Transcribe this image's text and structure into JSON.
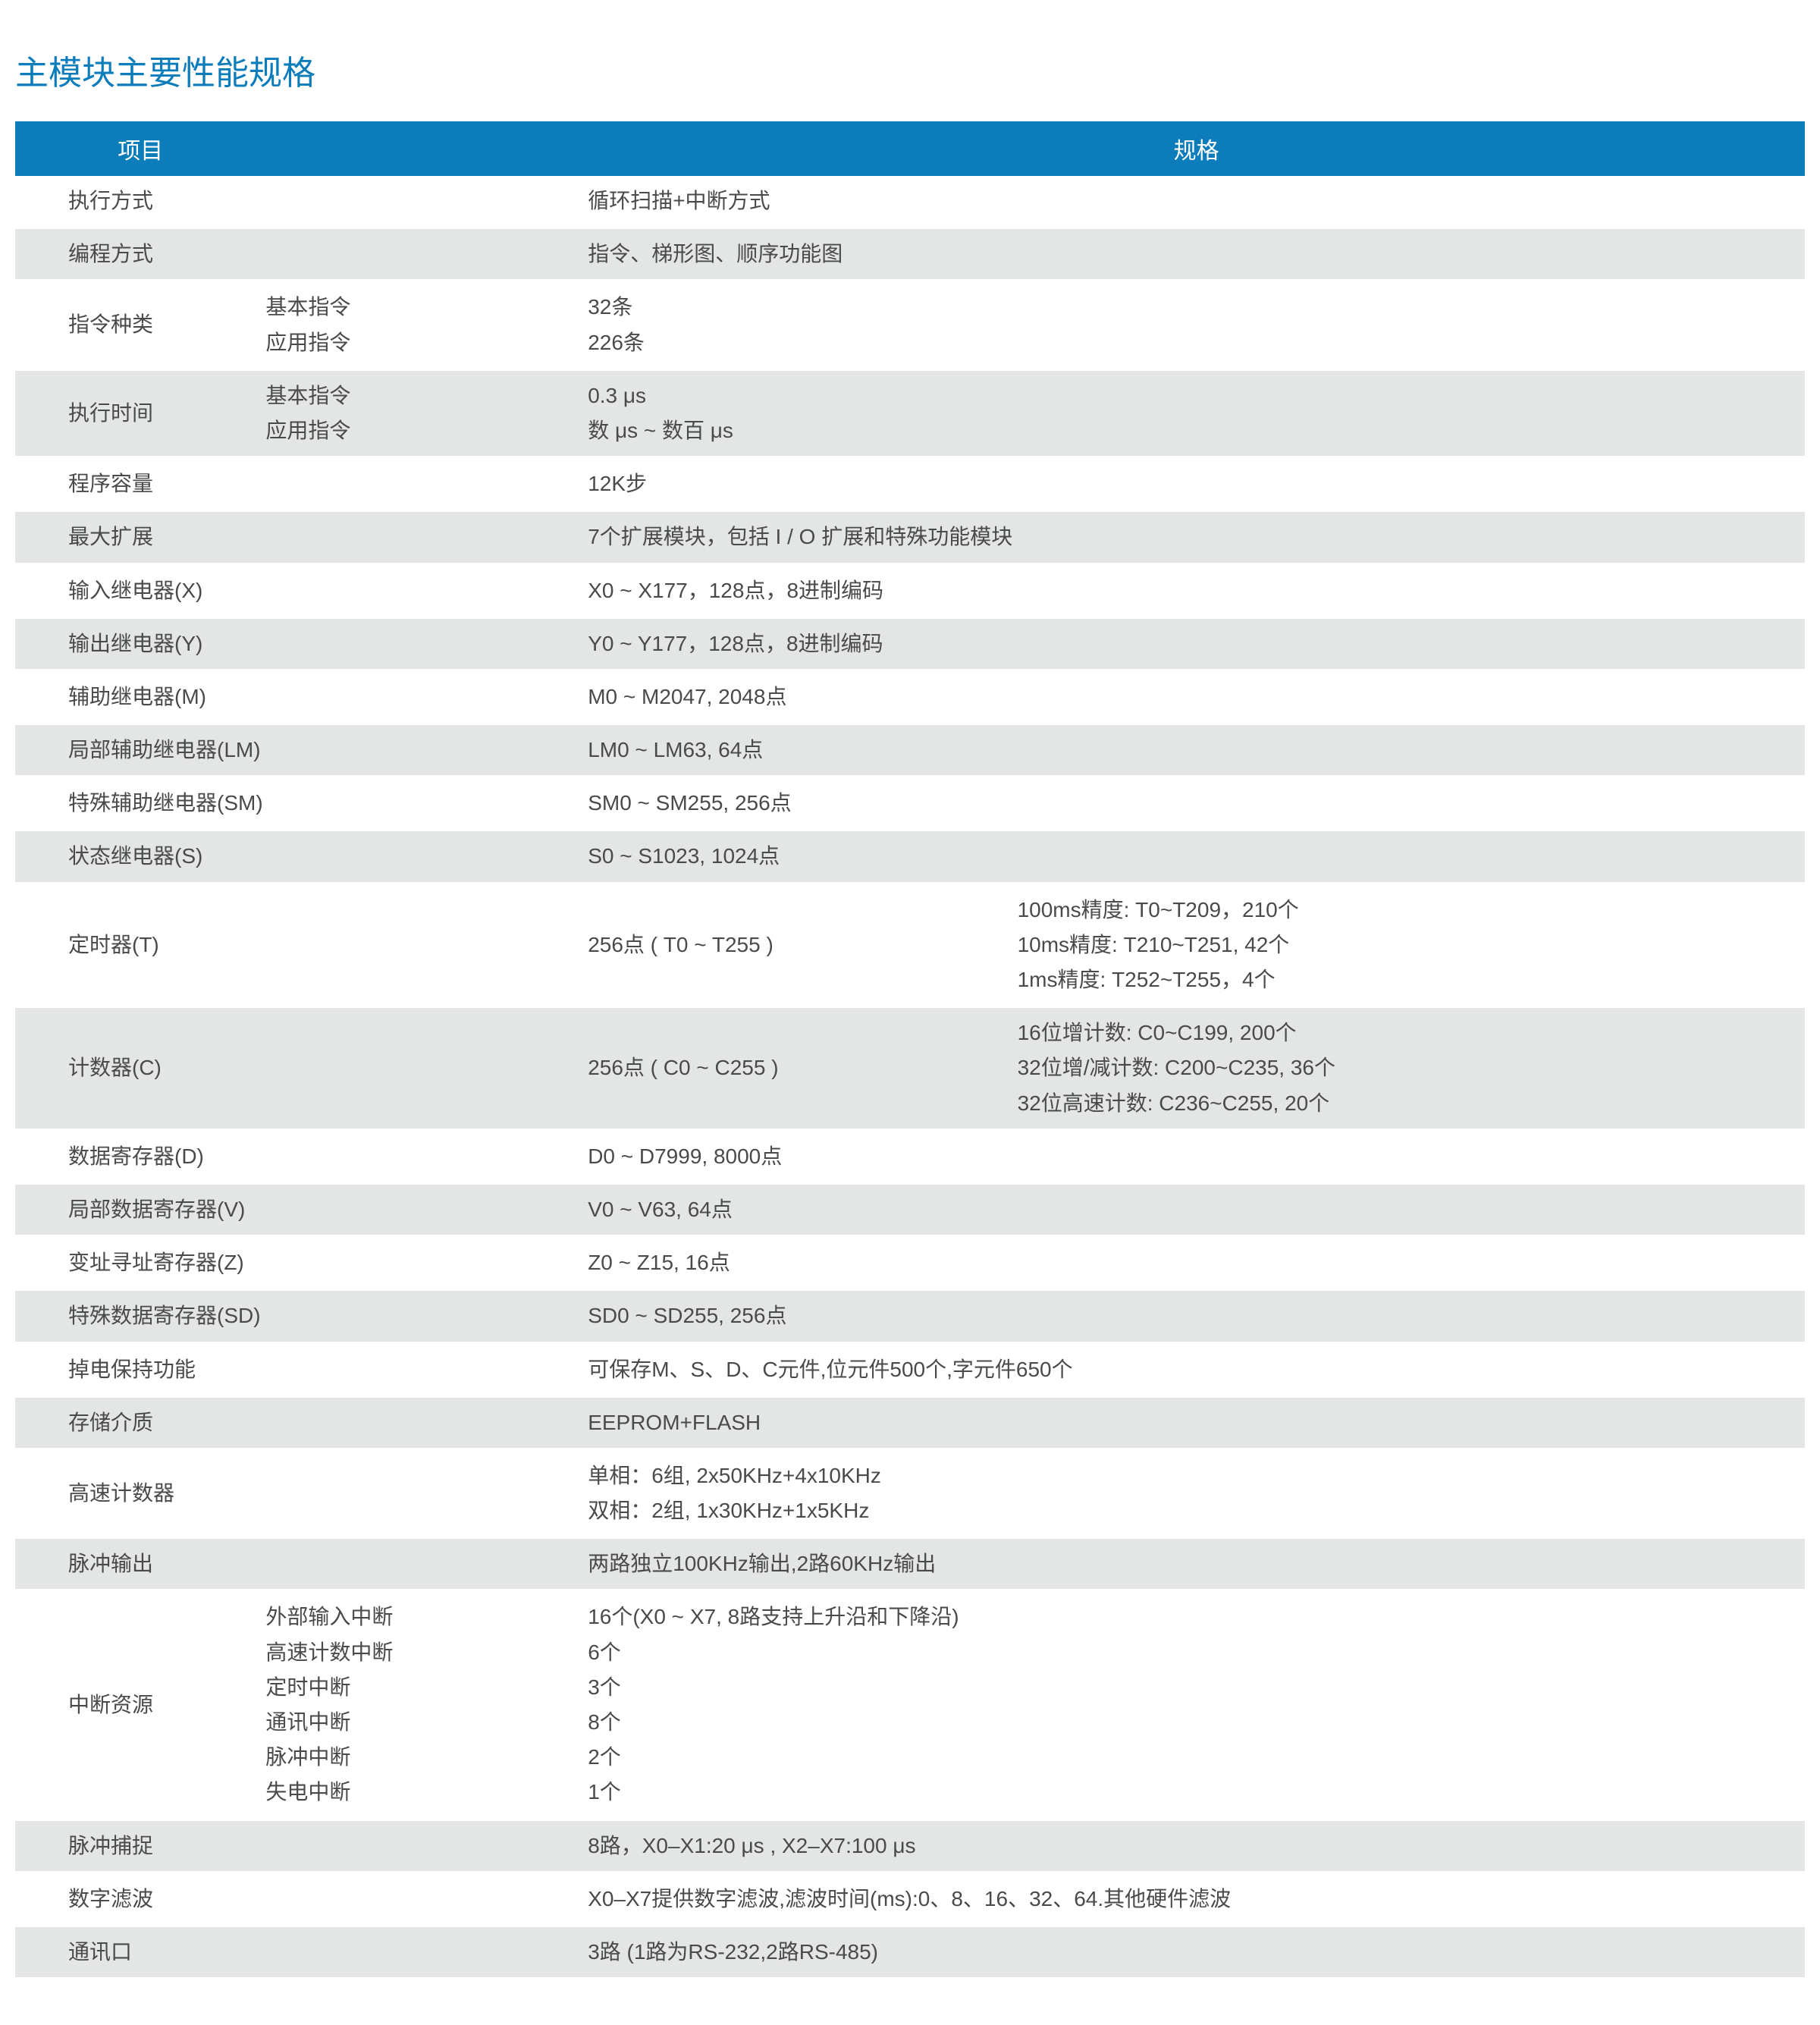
{
  "colors": {
    "title": "#0c7dba",
    "header_bg": "#0c7dba",
    "header_text": "#ffffff",
    "row_odd_bg": "#ffffff",
    "row_even_bg": "#e4e5e5",
    "text": "#494a4c",
    "divider": "#ffffff"
  },
  "title": "主模块主要性能规格",
  "header": {
    "item": "项目",
    "spec": "规格"
  },
  "rows": [
    {
      "item": "执行方式",
      "spec1": "循环扫描+中断方式"
    },
    {
      "item": "编程方式",
      "spec1": "指令、梯形图、顺序功能图"
    },
    {
      "item": "指令种类",
      "sub": [
        "基本指令",
        "应用指令"
      ],
      "spec1": [
        "32条",
        "226条"
      ]
    },
    {
      "item": "执行时间",
      "sub": [
        "基本指令",
        "应用指令"
      ],
      "spec1": [
        "0.3 μs",
        "数 μs ~ 数百 μs"
      ]
    },
    {
      "item": "程序容量",
      "spec1": "12K步"
    },
    {
      "item": "最大扩展",
      "spec1": "7个扩展模块，包括 I / O 扩展和特殊功能模块"
    },
    {
      "item": "输入继电器(X)",
      "spec1": "X0 ~ X177，128点，8进制编码"
    },
    {
      "item": "输出继电器(Y)",
      "spec1": "Y0 ~ Y177，128点，8进制编码"
    },
    {
      "item": "辅助继电器(M)",
      "spec1": "M0 ~ M2047, 2048点"
    },
    {
      "item": "局部辅助继电器(LM)",
      "spec1": "LM0 ~ LM63, 64点"
    },
    {
      "item": "特殊辅助继电器(SM)",
      "spec1": "SM0 ~ SM255, 256点"
    },
    {
      "item": "状态继电器(S)",
      "spec1": "S0 ~ S1023, 1024点"
    },
    {
      "item": "定时器(T)",
      "spec1": "256点 ( T0 ~ T255 )",
      "spec2": [
        "100ms精度: T0~T209，210个",
        "10ms精度: T210~T251, 42个",
        "1ms精度: T252~T255，4个"
      ]
    },
    {
      "item": "计数器(C)",
      "spec1": "256点 ( C0 ~ C255 )",
      "spec2": [
        "16位增计数: C0~C199, 200个",
        "32位增/减计数: C200~C235, 36个",
        "32位高速计数: C236~C255, 20个"
      ]
    },
    {
      "item": "数据寄存器(D)",
      "spec1": "D0 ~ D7999, 8000点"
    },
    {
      "item": "局部数据寄存器(V)",
      "spec1": "V0 ~ V63, 64点"
    },
    {
      "item": "变址寻址寄存器(Z)",
      "spec1": "Z0 ~ Z15, 16点"
    },
    {
      "item": "特殊数据寄存器(SD)",
      "spec1": "SD0 ~ SD255, 256点"
    },
    {
      "item": "掉电保持功能",
      "spec1": "可保存M、S、D、C元件,位元件500个,字元件650个"
    },
    {
      "item": "存储介质",
      "spec1": "EEPROM+FLASH"
    },
    {
      "item": "高速计数器",
      "spec1": [
        "单相：6组, 2x50KHz+4x10KHz",
        "双相：2组, 1x30KHz+1x5KHz"
      ]
    },
    {
      "item": "脉冲输出",
      "spec1": "两路独立100KHz输出,2路60KHz输出"
    },
    {
      "item": "中断资源",
      "sub": [
        "外部输入中断",
        "高速计数中断",
        "定时中断",
        "通讯中断",
        "脉冲中断",
        "失电中断"
      ],
      "spec1": [
        "16个(X0 ~ X7, 8路支持上升沿和下降沿)",
        "6个",
        "3个",
        "8个",
        "2个",
        "1个"
      ]
    },
    {
      "item": "脉冲捕捉",
      "spec1": "8路，X0–X1:20 μs , X2–X7:100 μs"
    },
    {
      "item": "数字滤波",
      "spec1": "X0–X7提供数字滤波,滤波时间(ms):0、8、16、32、64.其他硬件滤波"
    },
    {
      "item": "通讯口",
      "spec1": "3路 (1路为RS-232,2路RS-485)"
    }
  ]
}
